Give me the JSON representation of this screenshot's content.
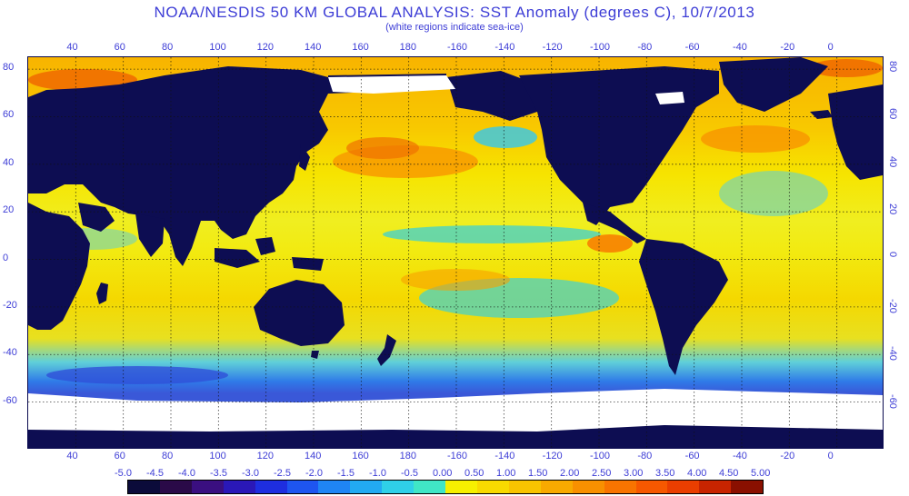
{
  "title": "NOAA/NESDIS 50 KM GLOBAL ANALYSIS: SST Anomaly (degrees C), 10/7/2013",
  "subtitle": "(white regions indicate sea-ice)",
  "map": {
    "longitude_ticks": [
      "40",
      "60",
      "80",
      "100",
      "120",
      "140",
      "160",
      "180",
      "-160",
      "-140",
      "-120",
      "-100",
      "-80",
      "-60",
      "-40",
      "-20",
      "0"
    ],
    "latitude_ticks": [
      "80",
      "60",
      "40",
      "20",
      "0",
      "-20",
      "-40",
      "-60"
    ],
    "projection": "equirectangular",
    "lon_range": [
      20,
      380
    ],
    "lat_range": [
      -80,
      85
    ],
    "grid": true,
    "colors": {
      "land": "#0d0d52",
      "sea_ice": "#ffffff",
      "grid_line": "#111111"
    }
  },
  "colorbar": {
    "labels": [
      "-5.0",
      "-4.5",
      "-4.0",
      "-3.5",
      "-3.0",
      "-2.5",
      "-2.0",
      "-1.5",
      "-1.0",
      "-0.5",
      "0.00",
      "0.50",
      "1.00",
      "1.50",
      "2.00",
      "2.50",
      "3.00",
      "3.50",
      "4.00",
      "4.50",
      "5.00"
    ],
    "colors": [
      "#0b0b3a",
      "#2a0a48",
      "#3a0f80",
      "#2a18b8",
      "#1e2ee0",
      "#1e55f0",
      "#1f85f5",
      "#22aaf2",
      "#2fd0e8",
      "#40e6c6",
      "#f6f000",
      "#f8da00",
      "#f8c400",
      "#f8aa00",
      "#f89000",
      "#f87400",
      "#f65800",
      "#ea3e00",
      "#c82400",
      "#8a1000"
    ]
  }
}
